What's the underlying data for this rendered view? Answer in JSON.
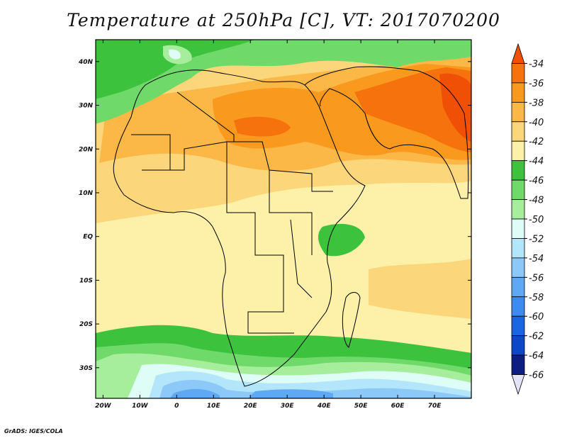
{
  "title": "Temperature at 250hPa [C], VT: 2017070200",
  "credit": "GrADS: IGES/COLA",
  "map": {
    "lon_range": [
      -22,
      80
    ],
    "lat_range": [
      -37,
      45
    ],
    "lon_ticks": [
      {
        "value": -20,
        "label": "20W"
      },
      {
        "value": -10,
        "label": "10W"
      },
      {
        "value": 0,
        "label": "0"
      },
      {
        "value": 10,
        "label": "10E"
      },
      {
        "value": 20,
        "label": "20E"
      },
      {
        "value": 30,
        "label": "30E"
      },
      {
        "value": 40,
        "label": "40E"
      },
      {
        "value": 50,
        "label": "50E"
      },
      {
        "value": 60,
        "label": "60E"
      },
      {
        "value": 70,
        "label": "70E"
      }
    ],
    "lat_ticks": [
      {
        "value": 40,
        "label": "40N"
      },
      {
        "value": 30,
        "label": "30N"
      },
      {
        "value": 20,
        "label": "20N"
      },
      {
        "value": 10,
        "label": "10N"
      },
      {
        "value": 0,
        "label": "EQ"
      },
      {
        "value": -10,
        "label": "10S"
      },
      {
        "value": -20,
        "label": "20S"
      },
      {
        "value": -30,
        "label": "30S"
      }
    ]
  },
  "colorbar": {
    "labels": [
      "-34",
      "-36",
      "-38",
      "-40",
      "-42",
      "-44",
      "-46",
      "-48",
      "-50",
      "-52",
      "-54",
      "-56",
      "-58",
      "-60",
      "-62",
      "-64",
      "-66"
    ],
    "colors": [
      "#f04f06",
      "#f6720d",
      "#f99a1e",
      "#fbb846",
      "#fcd67a",
      "#fdf0a8",
      "#3dc23e",
      "#6fda6a",
      "#a6ee9c",
      "#ddfdf6",
      "#b4e6fb",
      "#8cc8f8",
      "#5fa8f4",
      "#3d8af0",
      "#1a66e2",
      "#0d47c8",
      "#0d1e80",
      "#e2e2f8"
    ]
  }
}
